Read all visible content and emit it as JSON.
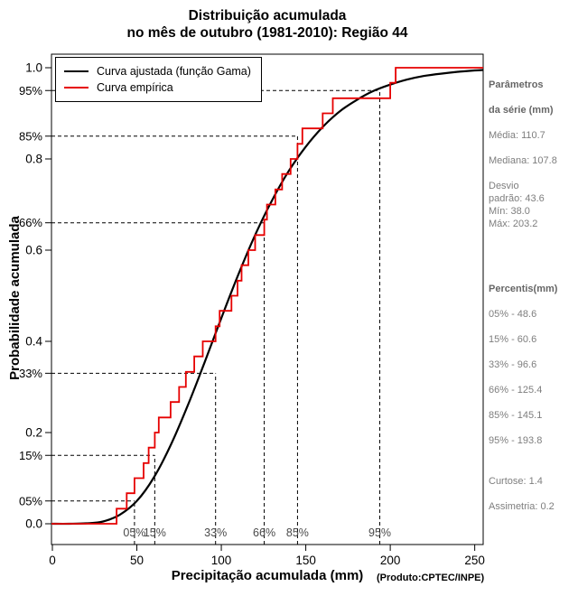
{
  "title": {
    "line1": "Distribuição acumulada",
    "line2": "no mês de outubro (1981-2010): Região 44"
  },
  "axes": {
    "x_label": "Precipitação acumulada (mm)",
    "x_note": "(Produto:CPTEC/INPE)",
    "y_label": "Probabilidade acumulada",
    "x_ticks": [
      "0",
      "50",
      "100",
      "150",
      "200",
      "250"
    ],
    "y_ticks": [
      "0.0",
      "0.2",
      "0.4",
      "0.6",
      "0.8",
      "1.0"
    ]
  },
  "side_panel": {
    "params_header_line1": "Parâmetros",
    "params_header_line2": "da série (mm)",
    "stats": {
      "media": "Média: 110.7",
      "mediana": "Mediana: 107.8",
      "desvio_line1": "Desvio",
      "desvio_line2": "padrão: 43.6",
      "min": "Mín: 38.0",
      "max": "Máx: 203.2"
    },
    "percentiles_header": "Percentis(mm)",
    "percentiles": [
      "05% - 48.6",
      "15% - 60.6",
      "33% - 96.6",
      "66% - 125.4",
      "85% - 145.1",
      "95% - 193.8"
    ],
    "kurtosis": "Curtose: 1.4",
    "skewness": "Assimetria: 0.2"
  },
  "chart_data": {
    "type": "line",
    "title": "Distribuição acumulada no mês de outubro (1981-2010): Região 44",
    "xlabel": "Precipitação acumulada (mm)",
    "ylabel": "Probabilidade acumulada",
    "xlim": [
      0,
      255
    ],
    "ylim": [
      0,
      1
    ],
    "grid": false,
    "legend_position": "top-left",
    "series": [
      {
        "name": "Curva ajustada (função Gama)",
        "type": "line",
        "color": "#000000",
        "x": [
          0,
          10,
          20,
          30,
          40,
          50,
          60,
          70,
          80,
          90,
          100,
          110,
          120,
          130,
          140,
          150,
          160,
          170,
          180,
          190,
          200,
          210,
          220,
          230,
          240,
          250,
          255
        ],
        "y": [
          0,
          0,
          0.001,
          0.005,
          0.02,
          0.05,
          0.101,
          0.172,
          0.258,
          0.353,
          0.451,
          0.546,
          0.633,
          0.709,
          0.774,
          0.827,
          0.87,
          0.904,
          0.929,
          0.949,
          0.963,
          0.974,
          0.982,
          0.987,
          0.991,
          0.994,
          0.995
        ]
      },
      {
        "name": "Curva empírica",
        "type": "step",
        "color": "#e60000",
        "x": [
          38.0,
          44.0,
          48.6,
          54.0,
          57.0,
          60.6,
          63.0,
          70.0,
          75.0,
          79.0,
          84.0,
          89.0,
          96.6,
          99.0,
          106.0,
          109.6,
          112.0,
          116.0,
          120.0,
          125.4,
          127.0,
          132.0,
          136.0,
          141.0,
          145.1,
          148.0,
          160.0,
          166.0,
          200.0,
          203.2
        ],
        "y": [
          0.033,
          0.067,
          0.1,
          0.133,
          0.167,
          0.2,
          0.233,
          0.267,
          0.3,
          0.333,
          0.367,
          0.4,
          0.433,
          0.467,
          0.5,
          0.533,
          0.567,
          0.6,
          0.633,
          0.667,
          0.7,
          0.733,
          0.767,
          0.8,
          0.833,
          0.867,
          0.9,
          0.933,
          0.967,
          1.0
        ]
      }
    ],
    "percentile_guides": [
      {
        "label": "05%",
        "x": 48.6,
        "p": 0.05
      },
      {
        "label": "15%",
        "x": 60.6,
        "p": 0.15
      },
      {
        "label": "33%",
        "x": 96.6,
        "p": 0.33
      },
      {
        "label": "66%",
        "x": 125.4,
        "p": 0.66
      },
      {
        "label": "85%",
        "x": 145.1,
        "p": 0.85
      },
      {
        "label": "95%",
        "x": 193.8,
        "p": 0.95
      }
    ],
    "stats": {
      "mean": 110.7,
      "median": 107.8,
      "std": 43.6,
      "min": 38.0,
      "max": 203.2,
      "kurtosis": 1.4,
      "skewness": 0.2
    }
  }
}
